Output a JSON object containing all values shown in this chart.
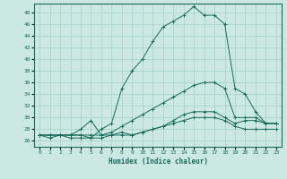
{
  "xlabel": "Humidex (Indice chaleur)",
  "bg_color": "#cbe8e3",
  "grid_color": "#a8d4cc",
  "line_color": "#1a6b5a",
  "spine_color": "#1a6b5a",
  "xlim": [
    -0.5,
    23.5
  ],
  "ylim": [
    25.0,
    49.5
  ],
  "yticks": [
    26,
    28,
    30,
    32,
    34,
    36,
    38,
    40,
    42,
    44,
    46,
    48
  ],
  "xticks": [
    0,
    1,
    2,
    3,
    4,
    5,
    6,
    7,
    8,
    9,
    10,
    11,
    12,
    13,
    14,
    15,
    16,
    17,
    18,
    19,
    20,
    21,
    22,
    23
  ],
  "series": {
    "max": [
      27,
      27,
      27,
      27,
      27,
      26.5,
      28,
      29,
      35,
      38,
      40,
      43,
      45.5,
      46.5,
      47.5,
      49,
      47.5,
      47.5,
      46,
      35,
      34,
      31,
      29,
      29
    ],
    "min": [
      27,
      26.5,
      27,
      26.5,
      26.5,
      26.5,
      26.5,
      27,
      27,
      27,
      27.5,
      28,
      28.5,
      29,
      29.5,
      30,
      30,
      30,
      29.5,
      28.5,
      28,
      28,
      28,
      28
    ],
    "mean": [
      27,
      27,
      27,
      27,
      27,
      27,
      27,
      27.5,
      28.5,
      29.5,
      30.5,
      31.5,
      32.5,
      33.5,
      34.5,
      35.5,
      36,
      36,
      35,
      30,
      30,
      30,
      29,
      29
    ],
    "extra": [
      27,
      27,
      27,
      27,
      28,
      29.5,
      27,
      27,
      27.5,
      27,
      27.5,
      28,
      28.5,
      29.5,
      30.5,
      31,
      31,
      31,
      30,
      29,
      29.5,
      29.5,
      29,
      29
    ]
  }
}
